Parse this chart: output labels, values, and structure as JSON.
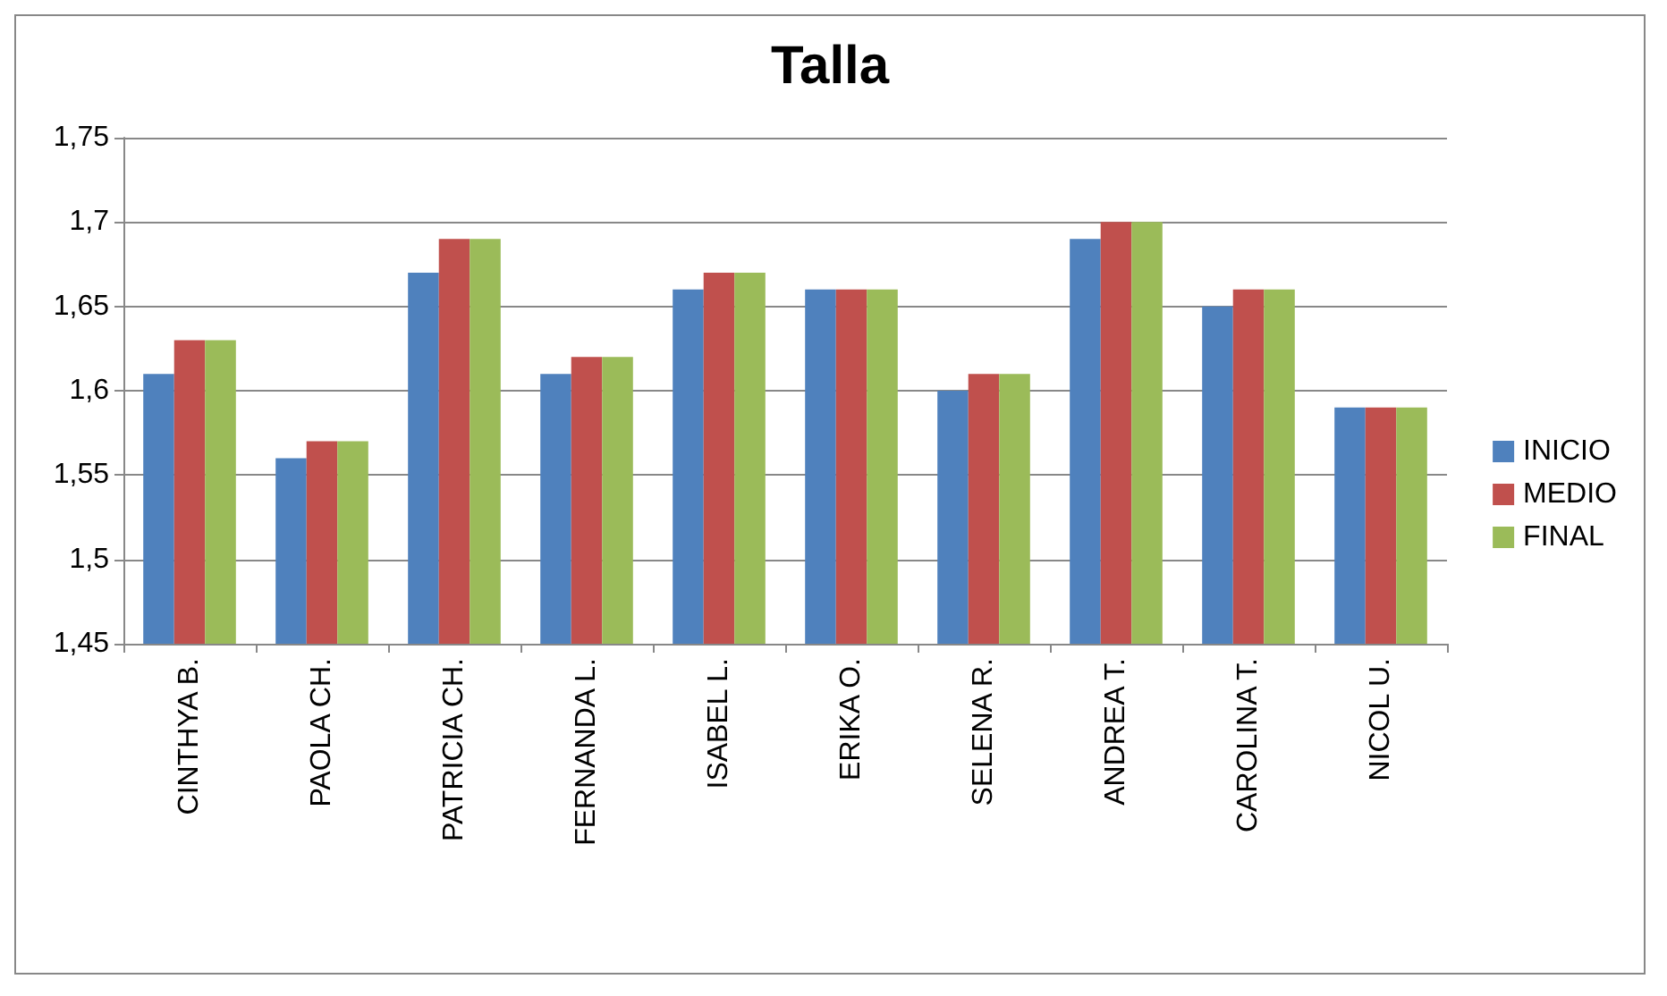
{
  "chart_data": {
    "type": "bar",
    "title": "Talla",
    "categories": [
      "CINTHYA B.",
      "PAOLA CH.",
      "PATRICIA CH.",
      "FERNANDA L.",
      "ISABEL L.",
      "ERIKA O.",
      "SELENA R.",
      "ANDREA T.",
      "CAROLINA T.",
      "NICOL U."
    ],
    "series": [
      {
        "name": "INICIO",
        "color": "#4f81bd",
        "values": [
          1.61,
          1.56,
          1.67,
          1.61,
          1.66,
          1.66,
          1.6,
          1.69,
          1.65,
          1.59
        ]
      },
      {
        "name": "MEDIO",
        "color": "#c0504d",
        "values": [
          1.63,
          1.57,
          1.69,
          1.62,
          1.67,
          1.66,
          1.61,
          1.7,
          1.66,
          1.59
        ]
      },
      {
        "name": "FINAL",
        "color": "#9bbb59",
        "values": [
          1.63,
          1.57,
          1.69,
          1.62,
          1.67,
          1.66,
          1.61,
          1.7,
          1.66,
          1.59
        ]
      }
    ],
    "ylim": [
      1.45,
      1.75
    ],
    "yticks": [
      {
        "value": 1.45,
        "label": "1,45"
      },
      {
        "value": 1.5,
        "label": "1,5"
      },
      {
        "value": 1.55,
        "label": "1,55"
      },
      {
        "value": 1.6,
        "label": "1,6"
      },
      {
        "value": 1.65,
        "label": "1,65"
      },
      {
        "value": 1.7,
        "label": "1,7"
      },
      {
        "value": 1.75,
        "label": "1,75"
      }
    ],
    "grid": "y",
    "legend": "right"
  }
}
